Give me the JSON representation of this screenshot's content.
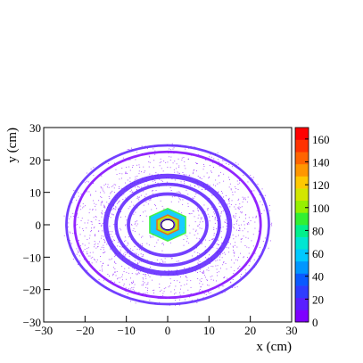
{
  "chart_data": {
    "type": "heatmap",
    "title": "",
    "xlabel": "x (cm)",
    "ylabel": "y (cm)",
    "xlim": [
      -30,
      30
    ],
    "ylim": [
      -30,
      30
    ],
    "x_ticks": [
      -30,
      -20,
      -10,
      0,
      10,
      20,
      30
    ],
    "y_ticks": [
      -30,
      -20,
      -10,
      0,
      10,
      20,
      30
    ],
    "colorbar": {
      "range": [
        0,
        170
      ],
      "ticks": [
        0,
        20,
        40,
        60,
        80,
        100,
        120,
        140,
        160
      ],
      "colors": [
        "#7f00ff",
        "#5a1fff",
        "#2f3cff",
        "#0a5aff",
        "#0096ff",
        "#00c8ff",
        "#00e6d2",
        "#00f08c",
        "#32f032",
        "#96f000",
        "#d2e600",
        "#ffc800",
        "#ff9600",
        "#ff6400",
        "#ff3200",
        "#ff0000"
      ]
    },
    "structures": [
      {
        "kind": "ring",
        "radius_cm": 24.5,
        "width_cm": 0.6,
        "level": 12
      },
      {
        "kind": "ring",
        "radius_cm": 22.5,
        "width_cm": 0.6,
        "level": 10
      },
      {
        "kind": "ring",
        "radius_cm": 15.0,
        "width_cm": 1.2,
        "level": 18
      },
      {
        "kind": "ring",
        "radius_cm": 12.5,
        "width_cm": 0.8,
        "level": 16
      },
      {
        "kind": "ring",
        "radius_cm": 9.5,
        "width_cm": 0.8,
        "level": 14
      },
      {
        "kind": "hexagon",
        "radius_cm": 5.0,
        "level": 60
      },
      {
        "kind": "hexagon",
        "radius_cm": 3.0,
        "level": 110
      },
      {
        "kind": "hole",
        "radius_cm": 1.5,
        "level": 0
      }
    ]
  }
}
